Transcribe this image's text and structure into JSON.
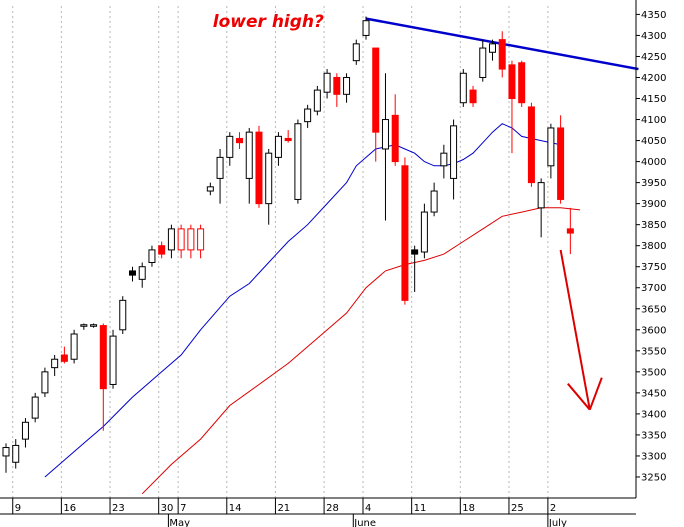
{
  "chart_data": {
    "type": "candlestick",
    "title": "",
    "xlabel": "",
    "ylabel": "",
    "ylim": [
      3200,
      4370
    ],
    "y_ticks": [
      3250,
      3300,
      3350,
      3400,
      3450,
      3500,
      3550,
      3600,
      3650,
      3700,
      3750,
      3800,
      3850,
      3900,
      3950,
      4000,
      4050,
      4100,
      4150,
      4200,
      4250,
      4300,
      4350
    ],
    "x_tick_labels": [
      {
        "label": "9",
        "index": 1
      },
      {
        "label": "16",
        "index": 6
      },
      {
        "label": "23",
        "index": 11
      },
      {
        "label": "30",
        "index": 16
      },
      {
        "label": "7",
        "index": 18
      },
      {
        "label": "14",
        "index": 23
      },
      {
        "label": "21",
        "index": 28
      },
      {
        "label": "28",
        "index": 33
      },
      {
        "label": "4",
        "index": 37
      },
      {
        "label": "11",
        "index": 42
      },
      {
        "label": "18",
        "index": 47
      },
      {
        "label": "25",
        "index": 52
      },
      {
        "label": "2",
        "index": 56
      }
    ],
    "month_labels": [
      {
        "label": "May",
        "index": 17
      },
      {
        "label": "June",
        "index": 36
      },
      {
        "label": "July",
        "index": 56
      }
    ],
    "candles": [
      {
        "open": 3300,
        "high": 3330,
        "low": 3260,
        "close": 3320,
        "color": "white"
      },
      {
        "open": 3285,
        "high": 3340,
        "low": 3270,
        "close": 3325,
        "color": "white"
      },
      {
        "open": 3340,
        "high": 3390,
        "low": 3320,
        "close": 3380,
        "color": "white"
      },
      {
        "open": 3390,
        "high": 3450,
        "low": 3380,
        "close": 3440,
        "color": "white"
      },
      {
        "open": 3450,
        "high": 3510,
        "low": 3440,
        "close": 3500,
        "color": "white"
      },
      {
        "open": 3510,
        "high": 3540,
        "low": 3490,
        "close": 3530,
        "color": "white"
      },
      {
        "open": 3540,
        "high": 3560,
        "low": 3520,
        "close": 3525,
        "color": "red"
      },
      {
        "open": 3530,
        "high": 3600,
        "low": 3520,
        "close": 3590,
        "color": "white"
      },
      {
        "open": 3612,
        "high": 3615,
        "low": 3600,
        "close": 3610,
        "color": "white"
      },
      {
        "open": 3610,
        "high": 3615,
        "low": 3605,
        "close": 3612,
        "color": "white"
      },
      {
        "open": 3610,
        "high": 3615,
        "low": 3360,
        "close": 3460,
        "color": "red"
      },
      {
        "open": 3470,
        "high": 3600,
        "low": 3460,
        "close": 3585,
        "color": "white"
      },
      {
        "open": 3600,
        "high": 3680,
        "low": 3590,
        "close": 3670,
        "color": "white"
      },
      {
        "open": 3730,
        "high": 3750,
        "low": 3715,
        "close": 3740,
        "color": "black"
      },
      {
        "open": 3720,
        "high": 3760,
        "low": 3700,
        "close": 3750,
        "color": "white"
      },
      {
        "open": 3760,
        "high": 3800,
        "low": 3750,
        "close": 3790,
        "color": "white"
      },
      {
        "open": 3800,
        "high": 3810,
        "low": 3770,
        "close": 3780,
        "color": "red"
      },
      {
        "open": 3790,
        "high": 3850,
        "low": 3770,
        "close": 3840,
        "color": "white"
      },
      {
        "open": 3840,
        "high": 3850,
        "low": 3770,
        "close": 3790,
        "color": "hollow-red"
      },
      {
        "open": 3840,
        "high": 3850,
        "low": 3770,
        "close": 3790,
        "color": "hollow-red"
      },
      {
        "open": 3840,
        "high": 3850,
        "low": 3770,
        "close": 3790,
        "color": "hollow-red"
      },
      {
        "open": 3930,
        "high": 3950,
        "low": 3920,
        "close": 3940,
        "color": "white"
      },
      {
        "open": 3960,
        "high": 4030,
        "low": 3900,
        "close": 4010,
        "color": "white"
      },
      {
        "open": 4010,
        "high": 4070,
        "low": 3990,
        "close": 4060,
        "color": "white"
      },
      {
        "open": 4055,
        "high": 4070,
        "low": 4030,
        "close": 4045,
        "color": "red"
      },
      {
        "open": 3960,
        "high": 4080,
        "low": 3900,
        "close": 4070,
        "color": "white"
      },
      {
        "open": 4070,
        "high": 4085,
        "low": 3890,
        "close": 3900,
        "color": "red"
      },
      {
        "open": 3900,
        "high": 4030,
        "low": 3850,
        "close": 4020,
        "color": "white"
      },
      {
        "open": 4010,
        "high": 4070,
        "low": 3990,
        "close": 4060,
        "color": "white"
      },
      {
        "open": 4055,
        "high": 4075,
        "low": 4045,
        "close": 4050,
        "color": "red"
      },
      {
        "open": 3910,
        "high": 4100,
        "low": 3900,
        "close": 4090,
        "color": "white"
      },
      {
        "open": 4095,
        "high": 4135,
        "low": 4080,
        "close": 4125,
        "color": "white"
      },
      {
        "open": 4120,
        "high": 4180,
        "low": 4110,
        "close": 4170,
        "color": "white"
      },
      {
        "open": 4165,
        "high": 4220,
        "low": 4150,
        "close": 4210,
        "color": "white"
      },
      {
        "open": 4200,
        "high": 4210,
        "low": 4130,
        "close": 4160,
        "color": "red"
      },
      {
        "open": 4160,
        "high": 4210,
        "low": 4140,
        "close": 4200,
        "color": "white"
      },
      {
        "open": 4240,
        "high": 4290,
        "low": 4230,
        "close": 4280,
        "color": "white"
      },
      {
        "open": 4300,
        "high": 4345,
        "low": 4290,
        "close": 4335,
        "color": "white"
      },
      {
        "open": 4270,
        "high": 4270,
        "low": 4000,
        "close": 4070,
        "color": "red"
      },
      {
        "open": 4030,
        "high": 4210,
        "low": 3860,
        "close": 4100,
        "color": "white"
      },
      {
        "open": 4110,
        "high": 4160,
        "low": 3990,
        "close": 4000,
        "color": "red"
      },
      {
        "open": 3990,
        "high": 4010,
        "low": 3660,
        "close": 3670,
        "color": "red"
      },
      {
        "open": 3780,
        "high": 3800,
        "low": 3690,
        "close": 3790,
        "color": "black"
      },
      {
        "open": 3785,
        "high": 3900,
        "low": 3770,
        "close": 3880,
        "color": "white"
      },
      {
        "open": 3880,
        "high": 3950,
        "low": 3870,
        "close": 3930,
        "color": "white"
      },
      {
        "open": 3990,
        "high": 4040,
        "low": 3960,
        "close": 4020,
        "color": "white"
      },
      {
        "open": 3960,
        "high": 4100,
        "low": 3910,
        "close": 4085,
        "color": "white"
      },
      {
        "open": 4140,
        "high": 4220,
        "low": 4130,
        "close": 4210,
        "color": "white"
      },
      {
        "open": 4170,
        "high": 4180,
        "low": 4130,
        "close": 4140,
        "color": "red"
      },
      {
        "open": 4200,
        "high": 4290,
        "low": 4190,
        "close": 4270,
        "color": "white"
      },
      {
        "open": 4260,
        "high": 4290,
        "low": 4240,
        "close": 4280,
        "color": "white"
      },
      {
        "open": 4290,
        "high": 4310,
        "low": 4200,
        "close": 4220,
        "color": "red"
      },
      {
        "open": 4230,
        "high": 4240,
        "low": 4020,
        "close": 4150,
        "color": "red"
      },
      {
        "open": 4235,
        "high": 4240,
        "low": 4130,
        "close": 4140,
        "color": "red"
      },
      {
        "open": 4130,
        "high": 4140,
        "low": 3940,
        "close": 3950,
        "color": "red"
      },
      {
        "open": 3890,
        "high": 3960,
        "low": 3820,
        "close": 3950,
        "color": "white"
      },
      {
        "open": 3990,
        "high": 4090,
        "low": 3960,
        "close": 4080,
        "color": "white"
      },
      {
        "open": 4080,
        "high": 4110,
        "low": 3900,
        "close": 3910,
        "color": "red"
      },
      {
        "open": 3840,
        "high": 3890,
        "low": 3780,
        "close": 3830,
        "color": "red"
      }
    ],
    "series": [
      {
        "type": "line",
        "color": "#0000cc",
        "points": [
          [
            4,
            3250
          ],
          [
            8,
            3330
          ],
          [
            10,
            3370
          ],
          [
            13,
            3440
          ],
          [
            16,
            3500
          ],
          [
            18,
            3540
          ],
          [
            20,
            3600
          ],
          [
            23,
            3680
          ],
          [
            25,
            3710
          ],
          [
            27,
            3760
          ],
          [
            29,
            3810
          ],
          [
            31,
            3850
          ],
          [
            33,
            3900
          ],
          [
            35,
            3950
          ],
          [
            36,
            3990
          ],
          [
            38,
            4030
          ],
          [
            40,
            4040
          ],
          [
            41,
            4030
          ],
          [
            42,
            4020
          ],
          [
            43,
            4000
          ],
          [
            44,
            3990
          ],
          [
            45,
            3990
          ],
          [
            46,
            3995
          ],
          [
            47,
            4005
          ],
          [
            48,
            4020
          ],
          [
            49,
            4045
          ],
          [
            50,
            4070
          ],
          [
            51,
            4090
          ],
          [
            52,
            4080
          ],
          [
            53,
            4060
          ],
          [
            55,
            4050
          ],
          [
            57,
            4040
          ]
        ]
      },
      {
        "type": "line",
        "color": "#dd0000",
        "points": [
          [
            14,
            3210
          ],
          [
            17,
            3280
          ],
          [
            20,
            3340
          ],
          [
            23,
            3420
          ],
          [
            26,
            3470
          ],
          [
            29,
            3520
          ],
          [
            32,
            3580
          ],
          [
            35,
            3640
          ],
          [
            37,
            3700
          ],
          [
            39,
            3740
          ],
          [
            41,
            3755
          ],
          [
            43,
            3765
          ],
          [
            45,
            3780
          ],
          [
            47,
            3810
          ],
          [
            49,
            3840
          ],
          [
            51,
            3870
          ],
          [
            53,
            3880
          ],
          [
            55,
            3890
          ],
          [
            57,
            3890
          ],
          [
            59,
            3885
          ]
        ]
      },
      {
        "type": "trendline",
        "color": "#0000cc",
        "from": [
          37,
          4340
        ],
        "to": [
          65,
          4220
        ]
      }
    ],
    "annotations": [
      {
        "text": "lower high?",
        "color": "#ee0000",
        "index": 23,
        "value": 4320
      },
      {
        "type": "arrow",
        "color": "#dd0000",
        "from": [
          57,
          3790
        ],
        "to": [
          60,
          3410
        ]
      }
    ],
    "grid": {
      "vertical": true,
      "horizontal": false
    }
  }
}
